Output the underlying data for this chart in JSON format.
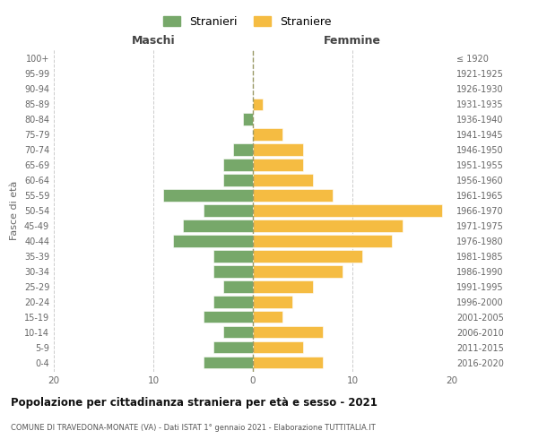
{
  "age_groups": [
    "0-4",
    "5-9",
    "10-14",
    "15-19",
    "20-24",
    "25-29",
    "30-34",
    "35-39",
    "40-44",
    "45-49",
    "50-54",
    "55-59",
    "60-64",
    "65-69",
    "70-74",
    "75-79",
    "80-84",
    "85-89",
    "90-94",
    "95-99",
    "100+"
  ],
  "birth_years": [
    "2016-2020",
    "2011-2015",
    "2006-2010",
    "2001-2005",
    "1996-2000",
    "1991-1995",
    "1986-1990",
    "1981-1985",
    "1976-1980",
    "1971-1975",
    "1966-1970",
    "1961-1965",
    "1956-1960",
    "1951-1955",
    "1946-1950",
    "1941-1945",
    "1936-1940",
    "1931-1935",
    "1926-1930",
    "1921-1925",
    "≤ 1920"
  ],
  "maschi": [
    5,
    4,
    3,
    5,
    4,
    3,
    4,
    4,
    8,
    7,
    5,
    9,
    3,
    3,
    2,
    0,
    1,
    0,
    0,
    0,
    0
  ],
  "femmine": [
    7,
    5,
    7,
    3,
    4,
    6,
    9,
    11,
    14,
    15,
    19,
    8,
    6,
    5,
    5,
    3,
    0,
    1,
    0,
    0,
    0
  ],
  "male_color": "#77a86a",
  "female_color": "#f5bc42",
  "grid_color": "#cccccc",
  "center_line_color": "#999966",
  "title": "Popolazione per cittadinanza straniera per età e sesso - 2021",
  "subtitle": "COMUNE DI TRAVEDONA-MONATE (VA) - Dati ISTAT 1° gennaio 2021 - Elaborazione TUTTITALIA.IT",
  "ylabel_left": "Fasce di età",
  "xlabel_left": "Maschi",
  "xlabel_right": "Femmine",
  "legend_stranieri": "Stranieri",
  "legend_straniere": "Straniere",
  "xlim": 20,
  "xticks": [
    -20,
    -10,
    0,
    10,
    20
  ],
  "xtick_labels": [
    "20",
    "10",
    "0",
    "10",
    "20"
  ]
}
